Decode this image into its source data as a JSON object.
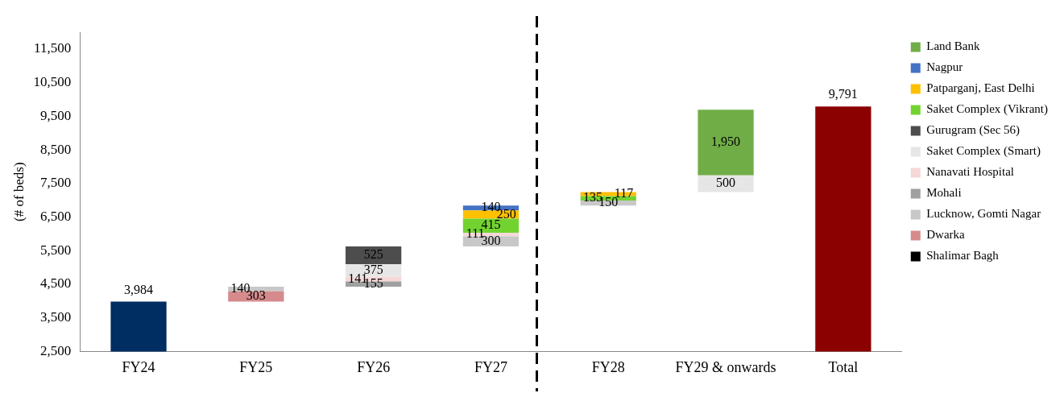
{
  "chart_data": {
    "type": "bar",
    "ylabel": "(# of beds)",
    "categories": [
      "FY24",
      "FY25",
      "FY26",
      "FY27",
      "FY28",
      "FY29 & onwards",
      "Total"
    ],
    "ylim": [
      2500,
      12000
    ],
    "yticks": [
      {
        "value": 2500,
        "label": "2,500"
      },
      {
        "value": 3500,
        "label": "3,500"
      },
      {
        "value": 4500,
        "label": "4,500"
      },
      {
        "value": 5500,
        "label": "5,500"
      },
      {
        "value": 6500,
        "label": "6,500"
      },
      {
        "value": 7500,
        "label": "7,500"
      },
      {
        "value": 8500,
        "label": "8,500"
      },
      {
        "value": 9500,
        "label": "9,500"
      },
      {
        "value": 10500,
        "label": "10,500"
      },
      {
        "value": 11500,
        "label": "11,500"
      }
    ],
    "grid": false,
    "legend": "right",
    "series": [
      {
        "colors": [
          "#002d62",
          null,
          null,
          null,
          null,
          null,
          "#8b0000"
        ],
        "values": [
          3984,
          null,
          null,
          null,
          null,
          null,
          9791
        ],
        "value_labels": [
          "3,984",
          null,
          null,
          null,
          null,
          null,
          "9,791"
        ]
      },
      {
        "name": "Shalimar Bagh",
        "color": "#000000",
        "values": [
          null,
          null,
          null,
          null,
          null,
          null,
          null
        ]
      },
      {
        "name": "Dwarka",
        "color": "#d68a8c",
        "values": [
          null,
          303,
          null,
          null,
          null,
          null,
          null
        ],
        "base": [
          null,
          3984,
          null,
          null,
          null,
          null,
          null
        ],
        "value_labels": [
          null,
          "303",
          null,
          null,
          null,
          null,
          null
        ]
      },
      {
        "name": "Lucknow, Gomti Nagar",
        "color": "#c8c8c8",
        "values": [
          null,
          140,
          null,
          300,
          150,
          null,
          null
        ],
        "base": [
          null,
          4287,
          null,
          5623,
          6839,
          null,
          null
        ],
        "value_labels": [
          null,
          "140",
          null,
          "300",
          "150",
          null,
          null
        ]
      },
      {
        "name": "Mohali",
        "color": "#a0a0a0",
        "values": [
          null,
          null,
          155,
          null,
          null,
          null,
          null
        ],
        "base": [
          null,
          null,
          4427,
          null,
          null,
          null,
          null
        ],
        "value_labels": [
          null,
          null,
          "155",
          null,
          null,
          null,
          null
        ]
      },
      {
        "name": "Nanavati Hospital",
        "color": "#f6d8d8",
        "values": [
          null,
          null,
          141,
          111,
          null,
          null,
          null
        ],
        "base": [
          null,
          null,
          4582,
          5923,
          null,
          null,
          null
        ],
        "value_labels": [
          null,
          null,
          "141",
          "111",
          null,
          null,
          null
        ]
      },
      {
        "name": "Saket Complex (Smart)",
        "color": "#e6e6e6",
        "values": [
          null,
          null,
          375,
          null,
          null,
          500,
          null
        ],
        "base": [
          null,
          null,
          4723,
          null,
          null,
          7241,
          null
        ],
        "value_labels": [
          null,
          null,
          "375",
          null,
          null,
          "500",
          null
        ]
      },
      {
        "name": "Gurugram (Sec 56)",
        "color": "#4d4d4d",
        "values": [
          null,
          null,
          525,
          null,
          null,
          null,
          null
        ],
        "base": [
          null,
          null,
          5098,
          null,
          null,
          null,
          null
        ],
        "value_labels": [
          null,
          null,
          "525",
          null,
          null,
          null,
          null
        ]
      },
      {
        "name": "Saket Complex (Vikrant)",
        "color": "#72d330",
        "values": [
          null,
          null,
          null,
          415,
          135,
          null,
          null
        ],
        "base": [
          null,
          null,
          null,
          6034,
          6989,
          null,
          null
        ],
        "value_labels": [
          null,
          null,
          null,
          "415",
          "135",
          null,
          null
        ]
      },
      {
        "name": "Patparganj, East Delhi",
        "color": "#ffc000",
        "values": [
          null,
          null,
          null,
          250,
          117,
          null,
          null
        ],
        "base": [
          null,
          null,
          null,
          6449,
          7124,
          null,
          null
        ],
        "value_labels": [
          null,
          null,
          null,
          "250",
          "117",
          null,
          null
        ]
      },
      {
        "name": "Nagpur",
        "color": "#4472c4",
        "values": [
          null,
          null,
          null,
          140,
          null,
          null,
          null
        ],
        "base": [
          null,
          null,
          null,
          6699,
          null,
          null,
          null
        ],
        "value_labels": [
          null,
          null,
          null,
          "140",
          null,
          null,
          null
        ]
      },
      {
        "name": "Land Bank",
        "color": "#70ad47",
        "values": [
          null,
          null,
          null,
          null,
          null,
          1950,
          null
        ],
        "base": [
          null,
          null,
          null,
          null,
          null,
          7741,
          null
        ],
        "value_labels": [
          null,
          null,
          null,
          null,
          null,
          "1,950",
          null
        ]
      }
    ]
  }
}
